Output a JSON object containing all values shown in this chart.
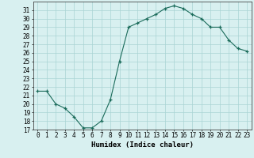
{
  "x": [
    0,
    1,
    2,
    3,
    4,
    5,
    6,
    7,
    8,
    9,
    10,
    11,
    12,
    13,
    14,
    15,
    16,
    17,
    18,
    19,
    20,
    21,
    22,
    23
  ],
  "y": [
    21.5,
    21.5,
    20.0,
    19.5,
    18.5,
    17.2,
    17.2,
    18.0,
    20.5,
    25.0,
    29.0,
    29.5,
    30.0,
    30.5,
    31.2,
    31.5,
    31.2,
    30.5,
    30.0,
    29.0,
    29.0,
    27.5,
    26.5,
    26.2
  ],
  "line_color": "#1a6b5a",
  "marker": "+",
  "marker_size": 3,
  "bg_color": "#d8f0f0",
  "grid_color": "#aad4d4",
  "xlabel": "Humidex (Indice chaleur)",
  "ylim": [
    17,
    32
  ],
  "xlim": [
    -0.5,
    23.5
  ],
  "yticks": [
    17,
    18,
    19,
    20,
    21,
    22,
    23,
    24,
    25,
    26,
    27,
    28,
    29,
    30,
    31
  ],
  "xticks": [
    0,
    1,
    2,
    3,
    4,
    5,
    6,
    7,
    8,
    9,
    10,
    11,
    12,
    13,
    14,
    15,
    16,
    17,
    18,
    19,
    20,
    21,
    22,
    23
  ],
  "tick_fontsize": 5.5,
  "xlabel_fontsize": 6.5
}
